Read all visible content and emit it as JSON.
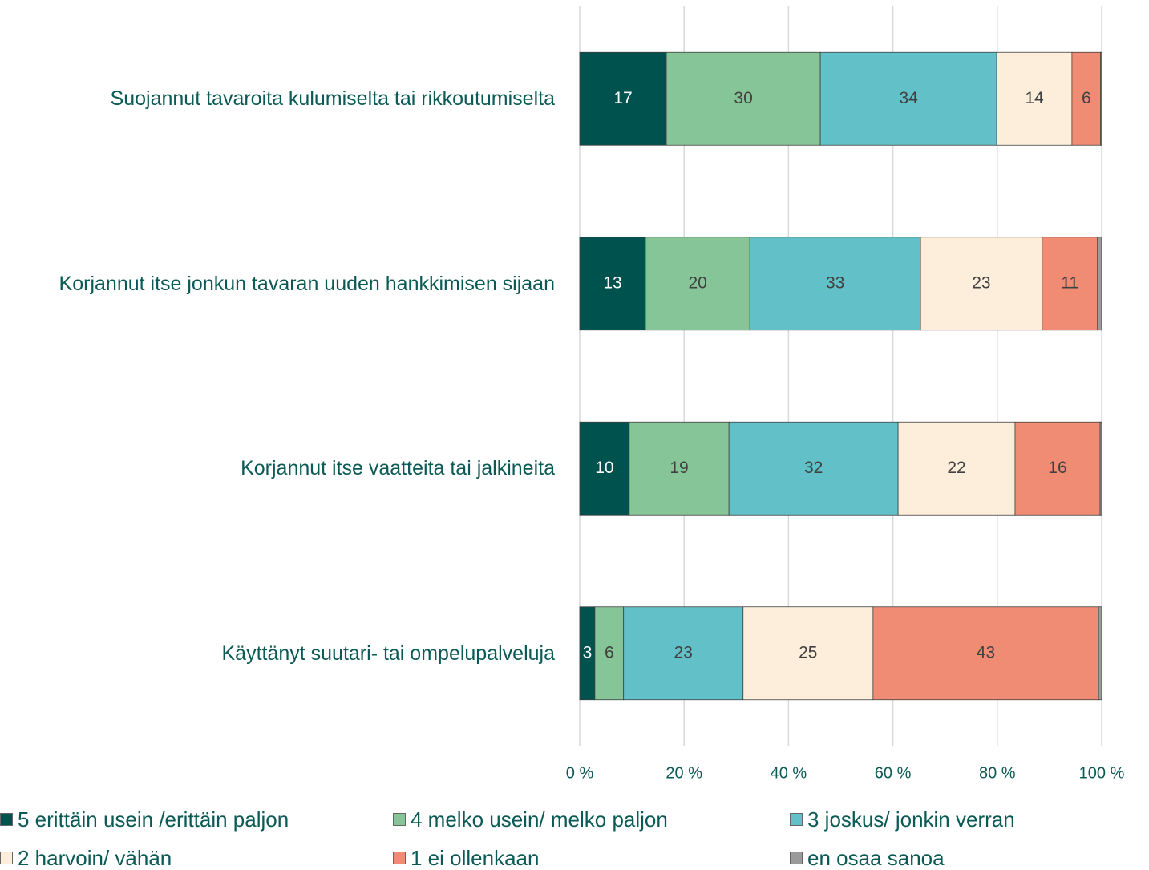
{
  "chart_data": {
    "type": "stacked_bar_horizontal",
    "categories": [
      "Suojannut tavaroita kulumiselta tai rikkoutumiselta",
      "Korjannut itse jonkun tavaran uuden hankkimisen sijaan",
      "Korjannut itse vaatteita tai jalkineita",
      "Käyttänyt suutari- tai ompelupalveluja"
    ],
    "series": [
      {
        "name": "5 erittäin usein /erittäin paljon",
        "color": "#00524f",
        "values": [
          16.6,
          12.6,
          9.5,
          2.9
        ],
        "value_labels": [
          "17",
          "13",
          "10",
          "3"
        ]
      },
      {
        "name": "4 melko usein/ melko paljon",
        "color": "#86c597",
        "values": [
          29.5,
          20.0,
          19.1,
          5.5
        ],
        "value_labels": [
          "30",
          "20",
          "19",
          "6"
        ]
      },
      {
        "name": "3 joskus/ jonkin verran",
        "color": "#62c0c9",
        "values": [
          33.8,
          32.7,
          32.4,
          22.9
        ],
        "value_labels": [
          "34",
          "33",
          "32",
          "23"
        ]
      },
      {
        "name": "2 harvoin/ vähän",
        "color": "#fdeedb",
        "values": [
          14.4,
          23.3,
          22.4,
          24.9
        ],
        "value_labels": [
          "14",
          "23",
          "22",
          "25"
        ]
      },
      {
        "name": "1 ei ollenkaan",
        "color": "#f08c74",
        "values": [
          5.5,
          10.6,
          16.3,
          43.2
        ],
        "value_labels": [
          "6",
          "11",
          "16",
          "43"
        ]
      },
      {
        "name": "en osaa sanoa",
        "color": "#9a9a9a",
        "values": [
          0.2,
          0.8,
          0.3,
          0.6
        ]
      }
    ],
    "xlim": [
      0,
      100
    ],
    "xticks": [
      {
        "value": 0,
        "label": "0 %"
      },
      {
        "value": 20,
        "label": "20 %"
      },
      {
        "value": 40,
        "label": "40 %"
      },
      {
        "value": 60,
        "label": "60 %"
      },
      {
        "value": 80,
        "label": "80 %"
      },
      {
        "value": 100,
        "label": "100 %"
      }
    ],
    "grid": true,
    "legend": "bottom"
  }
}
